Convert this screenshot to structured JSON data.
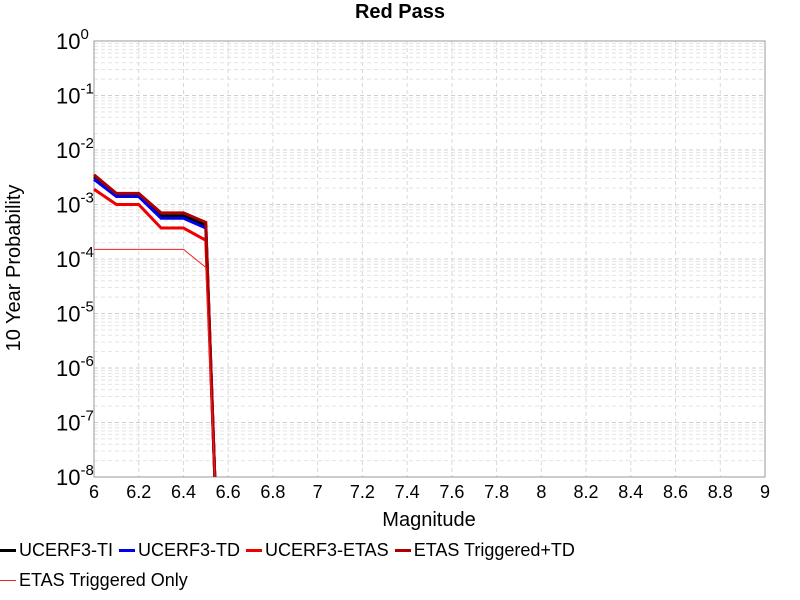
{
  "chart_data": {
    "type": "line",
    "title": "Red Pass",
    "xlabel": "Magnitude",
    "ylabel": "10 Year Probability",
    "xlim": [
      6,
      9
    ],
    "ylim": [
      1e-08,
      1
    ],
    "yscale": "log",
    "grid": true,
    "legend_placement": "bottom",
    "x_ticks": [
      "6",
      "6.2",
      "6.4",
      "6.6",
      "6.8",
      "7",
      "7.2",
      "7.4",
      "7.6",
      "7.8",
      "8",
      "8.2",
      "8.4",
      "8.6",
      "8.8",
      "9"
    ],
    "y_tick_exponents": [
      "0",
      "-1",
      "-2",
      "-3",
      "-4",
      "-5",
      "-6",
      "-7",
      "-8"
    ],
    "y_tick_base": "10",
    "series": [
      {
        "name": "UCERF3-TI",
        "color": "#000000",
        "x": [
          6.0,
          6.1,
          6.2,
          6.3,
          6.4,
          6.5,
          6.54
        ],
        "y": [
          0.0032,
          0.0015,
          0.0015,
          0.00062,
          0.00062,
          0.00042,
          1e-08
        ]
      },
      {
        "name": "UCERF3-TD",
        "color": "#0000ee",
        "x": [
          6.0,
          6.1,
          6.2,
          6.3,
          6.4,
          6.5,
          6.54
        ],
        "y": [
          0.0029,
          0.0014,
          0.0014,
          0.00056,
          0.00056,
          0.00037,
          1e-08
        ]
      },
      {
        "name": "UCERF3-ETAS",
        "color": "#ee0000",
        "x": [
          6.0,
          6.1,
          6.2,
          6.3,
          6.4,
          6.5,
          6.54
        ],
        "y": [
          0.0019,
          0.001,
          0.001,
          0.00037,
          0.00037,
          0.00022,
          1e-08
        ]
      },
      {
        "name": "ETAS Triggered+TD",
        "color": "#aa0000",
        "x": [
          6.0,
          6.1,
          6.2,
          6.3,
          6.4,
          6.5,
          6.54
        ],
        "y": [
          0.0035,
          0.0016,
          0.0016,
          0.0007,
          0.0007,
          0.00047,
          1e-08
        ]
      },
      {
        "name": "ETAS Triggered Only",
        "color": "#ee2222",
        "x": [
          6.0,
          6.1,
          6.2,
          6.3,
          6.4,
          6.5,
          6.54
        ],
        "y": [
          0.00015,
          0.00015,
          0.00015,
          0.00015,
          0.00015,
          7e-05,
          1e-08
        ]
      }
    ]
  }
}
